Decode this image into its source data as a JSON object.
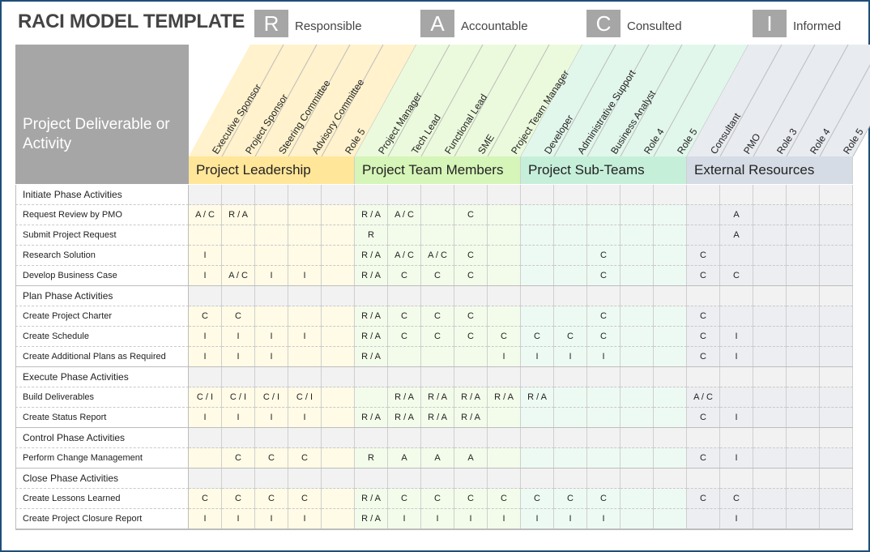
{
  "title": "RACI MODEL TEMPLATE",
  "legend": [
    {
      "letter": "R",
      "label": "Responsible"
    },
    {
      "letter": "A",
      "label": "Accountable"
    },
    {
      "letter": "C",
      "label": "Consulted"
    },
    {
      "letter": "I",
      "label": "Informed"
    }
  ],
  "corner_label": "Project Deliverable or Activity",
  "groups": [
    {
      "name": "Project Leadership",
      "band_color": "#ffe699",
      "header_color": "#fff2cc",
      "cell_color": "#fffbe6",
      "roles": [
        "Executive Sponsor",
        "Project Sponsor",
        "Steering Committee",
        "Advisory Committee",
        "Role 5"
      ]
    },
    {
      "name": "Project Team Members",
      "band_color": "#d6f5b8",
      "header_color": "#ebfadc",
      "cell_color": "#f3fcea",
      "roles": [
        "Project Manager",
        "Tech Lead",
        "Functional Lead",
        "SME",
        "Project Team Manager"
      ]
    },
    {
      "name": "Project Sub-Teams",
      "band_color": "#c6efda",
      "header_color": "#e2f7ec",
      "cell_color": "#edfaf3",
      "roles": [
        "Developer",
        "Administrative Support",
        "Business Analyst",
        "Role 4",
        "Role 5"
      ]
    },
    {
      "name": "External Resources",
      "band_color": "#d6dce5",
      "header_color": "#e8ebf0",
      "cell_color": "#eceef2",
      "roles": [
        "Consultant",
        "PMO",
        "Role 3",
        "Role 4",
        "Role 5"
      ]
    }
  ],
  "rows": [
    {
      "type": "phase",
      "label": "Initiate Phase Activities"
    },
    {
      "type": "task",
      "label": "Request Review by PMO",
      "cells": [
        "A / C",
        "R / A",
        "",
        "",
        "",
        "R / A",
        "A / C",
        "",
        "C",
        "",
        "",
        "",
        "",
        "",
        "",
        "",
        "A",
        "",
        "",
        ""
      ]
    },
    {
      "type": "task",
      "label": "Submit Project Request",
      "cells": [
        "",
        "",
        "",
        "",
        "",
        "R",
        "",
        "",
        "",
        "",
        "",
        "",
        "",
        "",
        "",
        "",
        "A",
        "",
        "",
        ""
      ]
    },
    {
      "type": "task",
      "label": "Research Solution",
      "cells": [
        "I",
        "",
        "",
        "",
        "",
        "R / A",
        "A / C",
        "A / C",
        "C",
        "",
        "",
        "",
        "C",
        "",
        "",
        "C",
        "",
        "",
        "",
        ""
      ]
    },
    {
      "type": "task",
      "label": "Develop Business Case",
      "cells": [
        "I",
        "A / C",
        "I",
        "I",
        "",
        "R / A",
        "C",
        "C",
        "C",
        "",
        "",
        "",
        "C",
        "",
        "",
        "C",
        "C",
        "",
        "",
        ""
      ]
    },
    {
      "type": "phase",
      "label": "Plan Phase Activities"
    },
    {
      "type": "task",
      "label": "Create Project Charter",
      "cells": [
        "C",
        "C",
        "",
        "",
        "",
        "R / A",
        "C",
        "C",
        "C",
        "",
        "",
        "",
        "C",
        "",
        "",
        "C",
        "",
        "",
        "",
        ""
      ]
    },
    {
      "type": "task",
      "label": "Create Schedule",
      "cells": [
        "I",
        "I",
        "I",
        "I",
        "",
        "R / A",
        "C",
        "C",
        "C",
        "C",
        "C",
        "C",
        "C",
        "",
        "",
        "C",
        "I",
        "",
        "",
        ""
      ]
    },
    {
      "type": "task",
      "label": "Create Additional Plans as Required",
      "cells": [
        "I",
        "I",
        "I",
        "",
        "",
        "R / A",
        "",
        "",
        "",
        "I",
        "I",
        "I",
        "I",
        "",
        "",
        "C",
        "I",
        "",
        "",
        ""
      ]
    },
    {
      "type": "phase",
      "label": "Execute Phase Activities"
    },
    {
      "type": "task",
      "label": "Build Deliverables",
      "cells": [
        "C / I",
        "C / I",
        "C / I",
        "C / I",
        "",
        "",
        "R / A",
        "R / A",
        "R / A",
        "R / A",
        "R / A",
        "",
        "",
        "",
        "",
        "A / C",
        "",
        "",
        "",
        ""
      ]
    },
    {
      "type": "task",
      "label": "Create Status Report",
      "cells": [
        "I",
        "I",
        "I",
        "I",
        "",
        "R / A",
        "R / A",
        "R / A",
        "R / A",
        "",
        "",
        "",
        "",
        "",
        "",
        "C",
        "I",
        "",
        "",
        ""
      ]
    },
    {
      "type": "phase",
      "label": "Control Phase Activities"
    },
    {
      "type": "task",
      "label": "Perform Change Management",
      "cells": [
        "",
        "C",
        "C",
        "C",
        "",
        "R",
        "A",
        "A",
        "A",
        "",
        "",
        "",
        "",
        "",
        "",
        "C",
        "I",
        "",
        "",
        ""
      ]
    },
    {
      "type": "phase",
      "label": "Close Phase Activities"
    },
    {
      "type": "task",
      "label": "Create Lessons Learned",
      "cells": [
        "C",
        "C",
        "C",
        "C",
        "",
        "R / A",
        "C",
        "C",
        "C",
        "C",
        "C",
        "C",
        "C",
        "",
        "",
        "C",
        "C",
        "",
        "",
        ""
      ]
    },
    {
      "type": "task",
      "label": "Create Project Closure Report",
      "cells": [
        "I",
        "I",
        "I",
        "I",
        "",
        "R / A",
        "I",
        "I",
        "I",
        "I",
        "I",
        "I",
        "I",
        "",
        "",
        "",
        "I",
        "",
        "",
        ""
      ]
    }
  ]
}
